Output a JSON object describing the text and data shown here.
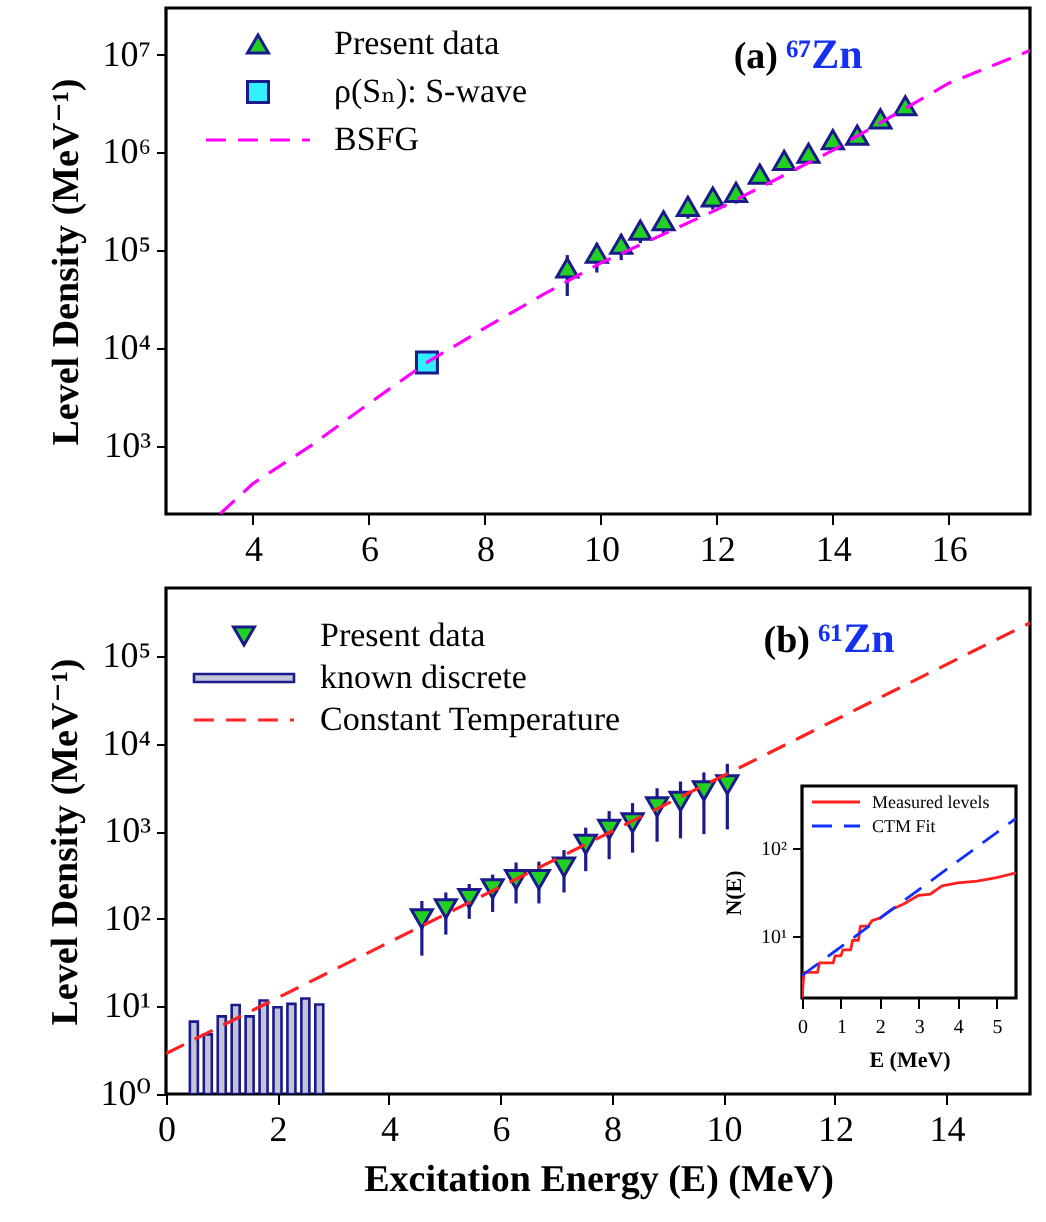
{
  "chart_data": [
    {
      "type": "scatter",
      "ylabel": "Level Density (MeV⁻¹)",
      "annotations": [
        "(a) ⁶⁷Zn"
      ],
      "legend": "top left",
      "log": "y",
      "grid": false,
      "xlim": [
        2.5,
        17.4
      ],
      "xticks": [
        4,
        6,
        8,
        10,
        12,
        14,
        16
      ],
      "ylim": [
        200,
        30000000
      ],
      "yticks": [
        {
          "value": 1000,
          "label": "10³"
        },
        {
          "value": 10000,
          "label": "10⁴"
        },
        {
          "value": 100000,
          "label": "10⁵"
        },
        {
          "value": 1000000,
          "label": "10⁶"
        },
        {
          "value": 10000000,
          "label": "10⁷"
        }
      ],
      "series": [
        {
          "name": "Present data",
          "marker": "triangle",
          "color": "#22d022",
          "x": [
            9.42,
            9.93,
            10.35,
            10.68,
            11.08,
            11.5,
            11.93,
            12.33,
            12.74,
            13.16,
            13.58,
            14.0,
            14.42,
            14.82,
            15.25
          ],
          "values": [
            66000,
            93000,
            115000,
            160000,
            200000,
            280000,
            350000,
            390000,
            600000,
            830000,
            980000,
            1350000,
            1500000,
            2200000,
            3000000
          ],
          "errors": [
            [
              34000,
              89000
            ],
            [
              59000,
              118000
            ],
            [
              79000,
              145000
            ],
            [
              118000,
              196000
            ],
            [
              150000,
              240000
            ],
            [
              210000,
              350000
            ],
            [
              260000,
              430000
            ],
            [
              300000,
              470000
            ],
            [
              490000,
              700000
            ],
            [
              700000,
              950000
            ],
            [
              850000,
              1100000
            ],
            [
              1150000,
              1550000
            ],
            [
              1300000,
              1700000
            ],
            [
              1950000,
              2500000
            ],
            [
              2700000,
              3400000
            ]
          ]
        },
        {
          "name": "ρ(Sₙ): S-wave",
          "marker": "square",
          "color": "#33eeff",
          "x": [
            7.0
          ],
          "values": [
            7100
          ]
        },
        {
          "name": "BSFG",
          "type": "line",
          "color": "#ff00ff",
          "line_style": "dashed",
          "x": [
            3.43,
            4,
            5,
            6,
            7,
            8,
            9,
            10,
            12,
            14,
            16,
            17.4
          ],
          "values": [
            200,
            410,
            1000,
            2700,
            7100,
            16000,
            35000,
            74000,
            260000,
            1050000,
            5100000,
            11000000
          ]
        }
      ]
    },
    {
      "type": "scatter",
      "xlabel": "Excitation Energy (E) (MeV)",
      "ylabel": "Level Density (MeV⁻¹)",
      "annotations": [
        "(b) ⁶¹Zn"
      ],
      "legend": "top left",
      "log": "y",
      "grid": false,
      "xlim": [
        0,
        15.5
      ],
      "xticks": [
        0,
        2,
        4,
        6,
        8,
        10,
        12,
        14
      ],
      "ylim": [
        1,
        600000
      ],
      "yticks": [
        {
          "value": 1,
          "label": "10⁰"
        },
        {
          "value": 10,
          "label": "10¹"
        },
        {
          "value": 100,
          "label": "10²"
        },
        {
          "value": 1000,
          "label": "10³"
        },
        {
          "value": 10000,
          "label": "10⁴"
        },
        {
          "value": 100000,
          "label": "10⁵"
        }
      ],
      "series": [
        {
          "name": "Present data",
          "marker": "triangle-down",
          "color": "#22d022",
          "x": [
            4.59,
            5.02,
            5.44,
            5.86,
            6.28,
            6.69,
            7.14,
            7.53,
            7.95,
            8.37,
            8.81,
            9.23,
            9.65,
            10.07
          ],
          "values": [
            100,
            130,
            170,
            220,
            280,
            280,
            390,
            710,
            1050,
            1250,
            1900,
            2200,
            2900,
            3400
          ],
          "errors": [
            [
              38,
              160
            ],
            [
              66,
              200
            ],
            [
              100,
              250
            ],
            [
              120,
              320
            ],
            [
              150,
              440
            ],
            [
              150,
              450
            ],
            [
              200,
              610
            ],
            [
              350,
              1100
            ],
            [
              480,
              1700
            ],
            [
              570,
              2100
            ],
            [
              760,
              3100
            ],
            [
              830,
              3700
            ],
            [
              930,
              4700
            ],
            [
              1050,
              5900
            ]
          ]
        },
        {
          "name": "known discrete",
          "type": "bar",
          "color": "#c4c4d8",
          "x": [
            0.5,
            0.75,
            1.0,
            1.25,
            1.5,
            1.75,
            2.0,
            2.25,
            2.5,
            2.75
          ],
          "values": [
            6.7,
            4.8,
            7.7,
            10.4,
            7.7,
            11.7,
            9.8,
            10.7,
            12.3,
            10.5
          ]
        },
        {
          "name": "Constant Temperature",
          "type": "line",
          "color": "#ff2222",
          "line_style": "dashed",
          "x": [
            0,
            15.5
          ],
          "values": [
            2.9,
            240000
          ]
        }
      ]
    },
    {
      "type": "line",
      "xlabel": "E (MeV)",
      "ylabel": "N(E)",
      "legend": "top left",
      "log": "y",
      "grid": false,
      "xlim": [
        0,
        5.5
      ],
      "xticks": [
        0,
        1,
        2,
        3,
        4,
        5
      ],
      "ylim": [
        2,
        500
      ],
      "yticks": [
        {
          "value": 10,
          "label": "10¹"
        },
        {
          "value": 100,
          "label": "10²"
        }
      ],
      "series": [
        {
          "name": "Measured levels",
          "color": "#ff2020",
          "line_style": "solid",
          "x": [
            0,
            0.05,
            0.4,
            0.45,
            0.8,
            0.85,
            1.0,
            1.05,
            1.25,
            1.3,
            1.45,
            1.5,
            1.7,
            1.8,
            2.0,
            2.3,
            2.6,
            3.0,
            3.3,
            3.6,
            4.0,
            4.5,
            5.0,
            5.5
          ],
          "values": [
            2,
            3.9,
            3.9,
            5,
            5,
            6,
            6,
            7,
            7,
            9,
            9,
            13,
            13,
            15,
            16,
            20,
            23,
            29,
            30,
            37,
            40,
            42,
            46,
            52
          ]
        },
        {
          "name": "CTM Fit",
          "color": "#1030ff",
          "line_style": "dashed",
          "x": [
            0,
            5.5
          ],
          "values": [
            3.6,
            215
          ]
        }
      ]
    }
  ]
}
